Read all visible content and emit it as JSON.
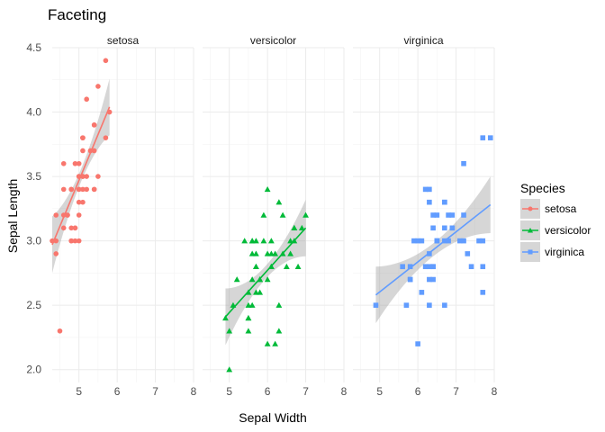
{
  "chart_data": {
    "type": "scatter",
    "title": "Faceting",
    "xlabel": "Sepal Width",
    "ylabel": "Sepal Length",
    "xlim": [
      4.3,
      8.0
    ],
    "ylim": [
      1.9,
      4.5
    ],
    "x_ticks": [
      5,
      6,
      7,
      8
    ],
    "y_ticks": [
      "2.0",
      "2.5",
      "3.0",
      "3.5",
      "4.0",
      "4.5"
    ],
    "y_tick_values": [
      2.0,
      2.5,
      3.0,
      3.5,
      4.0,
      4.5
    ],
    "grid": true,
    "legend_title": "Species",
    "legend_position": "right",
    "series": [
      {
        "name": "setosa",
        "color": "#F8766D",
        "marker": "circle",
        "points": [
          [
            5.1,
            3.5
          ],
          [
            4.9,
            3.0
          ],
          [
            4.7,
            3.2
          ],
          [
            4.6,
            3.1
          ],
          [
            5.0,
            3.6
          ],
          [
            5.4,
            3.9
          ],
          [
            4.6,
            3.4
          ],
          [
            5.0,
            3.4
          ],
          [
            4.4,
            2.9
          ],
          [
            4.9,
            3.1
          ],
          [
            5.4,
            3.7
          ],
          [
            4.8,
            3.4
          ],
          [
            4.8,
            3.0
          ],
          [
            4.3,
            3.0
          ],
          [
            5.8,
            4.0
          ],
          [
            5.7,
            4.4
          ],
          [
            5.4,
            3.9
          ],
          [
            5.1,
            3.5
          ],
          [
            5.7,
            3.8
          ],
          [
            5.1,
            3.8
          ],
          [
            5.4,
            3.4
          ],
          [
            5.1,
            3.7
          ],
          [
            4.6,
            3.6
          ],
          [
            5.1,
            3.3
          ],
          [
            4.8,
            3.4
          ],
          [
            5.0,
            3.0
          ],
          [
            5.0,
            3.4
          ],
          [
            5.2,
            3.5
          ],
          [
            5.2,
            3.4
          ],
          [
            4.7,
            3.2
          ],
          [
            4.8,
            3.1
          ],
          [
            5.4,
            3.4
          ],
          [
            5.2,
            4.1
          ],
          [
            5.5,
            4.2
          ],
          [
            4.9,
            3.1
          ],
          [
            5.0,
            3.2
          ],
          [
            5.5,
            3.5
          ],
          [
            4.9,
            3.6
          ],
          [
            4.4,
            3.0
          ],
          [
            5.1,
            3.4
          ],
          [
            5.0,
            3.5
          ],
          [
            4.5,
            2.3
          ],
          [
            4.4,
            3.2
          ],
          [
            5.0,
            3.5
          ],
          [
            5.1,
            3.8
          ],
          [
            4.8,
            3.0
          ],
          [
            5.1,
            3.8
          ],
          [
            4.6,
            3.2
          ],
          [
            5.3,
            3.7
          ],
          [
            5.0,
            3.3
          ]
        ],
        "fit": {
          "x": [
            4.3,
            5.8
          ],
          "y": [
            2.97,
            4.04
          ]
        }
      },
      {
        "name": "versicolor",
        "color": "#00BA38",
        "marker": "triangle",
        "points": [
          [
            7.0,
            3.2
          ],
          [
            6.4,
            3.2
          ],
          [
            6.9,
            3.1
          ],
          [
            5.5,
            2.3
          ],
          [
            6.5,
            2.8
          ],
          [
            5.7,
            2.8
          ],
          [
            6.3,
            3.3
          ],
          [
            4.9,
            2.4
          ],
          [
            6.6,
            2.9
          ],
          [
            5.2,
            2.7
          ],
          [
            5.0,
            2.0
          ],
          [
            5.9,
            3.0
          ],
          [
            6.0,
            2.2
          ],
          [
            6.1,
            2.9
          ],
          [
            5.6,
            2.9
          ],
          [
            6.7,
            3.1
          ],
          [
            5.6,
            3.0
          ],
          [
            5.8,
            2.7
          ],
          [
            6.2,
            2.2
          ],
          [
            5.6,
            2.5
          ],
          [
            5.9,
            3.2
          ],
          [
            6.1,
            2.8
          ],
          [
            6.3,
            2.5
          ],
          [
            6.1,
            2.8
          ],
          [
            6.4,
            2.9
          ],
          [
            6.6,
            3.0
          ],
          [
            6.8,
            2.8
          ],
          [
            6.7,
            3.0
          ],
          [
            6.0,
            2.9
          ],
          [
            5.7,
            2.6
          ],
          [
            5.5,
            2.4
          ],
          [
            5.5,
            2.4
          ],
          [
            5.8,
            2.7
          ],
          [
            6.0,
            2.7
          ],
          [
            5.4,
            3.0
          ],
          [
            6.0,
            3.4
          ],
          [
            6.7,
            3.1
          ],
          [
            6.3,
            2.3
          ],
          [
            5.6,
            3.0
          ],
          [
            5.5,
            2.5
          ],
          [
            5.5,
            2.6
          ],
          [
            6.1,
            3.0
          ],
          [
            5.8,
            2.6
          ],
          [
            5.0,
            2.3
          ],
          [
            5.6,
            2.7
          ],
          [
            5.7,
            3.0
          ],
          [
            5.7,
            2.9
          ],
          [
            6.2,
            2.9
          ],
          [
            5.1,
            2.5
          ],
          [
            5.7,
            2.8
          ]
        ],
        "fit": {
          "x": [
            4.9,
            7.0
          ],
          "y": [
            2.41,
            3.1
          ]
        }
      },
      {
        "name": "virginica",
        "color": "#619CFF",
        "marker": "square",
        "points": [
          [
            6.3,
            3.3
          ],
          [
            5.8,
            2.7
          ],
          [
            7.1,
            3.0
          ],
          [
            6.3,
            2.9
          ],
          [
            6.5,
            3.0
          ],
          [
            7.6,
            3.0
          ],
          [
            4.9,
            2.5
          ],
          [
            7.3,
            2.9
          ],
          [
            6.7,
            2.5
          ],
          [
            7.2,
            3.6
          ],
          [
            6.5,
            3.2
          ],
          [
            6.4,
            2.7
          ],
          [
            6.8,
            3.0
          ],
          [
            5.7,
            2.5
          ],
          [
            5.8,
            2.8
          ],
          [
            6.4,
            3.2
          ],
          [
            6.5,
            3.0
          ],
          [
            7.7,
            3.8
          ],
          [
            7.7,
            2.6
          ],
          [
            6.0,
            2.2
          ],
          [
            6.9,
            3.2
          ],
          [
            5.6,
            2.8
          ],
          [
            7.7,
            2.8
          ],
          [
            6.3,
            2.7
          ],
          [
            6.7,
            3.3
          ],
          [
            7.2,
            3.2
          ],
          [
            6.2,
            2.8
          ],
          [
            6.1,
            3.0
          ],
          [
            6.4,
            2.8
          ],
          [
            7.2,
            3.0
          ],
          [
            7.4,
            2.8
          ],
          [
            7.9,
            3.8
          ],
          [
            6.4,
            2.8
          ],
          [
            6.3,
            2.8
          ],
          [
            6.1,
            2.6
          ],
          [
            7.7,
            3.0
          ],
          [
            6.3,
            3.4
          ],
          [
            6.4,
            3.1
          ],
          [
            6.0,
            3.0
          ],
          [
            6.9,
            3.1
          ],
          [
            6.7,
            3.1
          ],
          [
            6.9,
            3.1
          ],
          [
            5.8,
            2.7
          ],
          [
            6.8,
            3.2
          ],
          [
            6.7,
            3.3
          ],
          [
            6.7,
            3.0
          ],
          [
            6.3,
            2.5
          ],
          [
            6.5,
            3.0
          ],
          [
            6.2,
            3.4
          ],
          [
            5.9,
            3.0
          ]
        ],
        "fit": {
          "x": [
            4.9,
            7.9
          ],
          "y": [
            2.58,
            3.28
          ]
        }
      }
    ]
  }
}
